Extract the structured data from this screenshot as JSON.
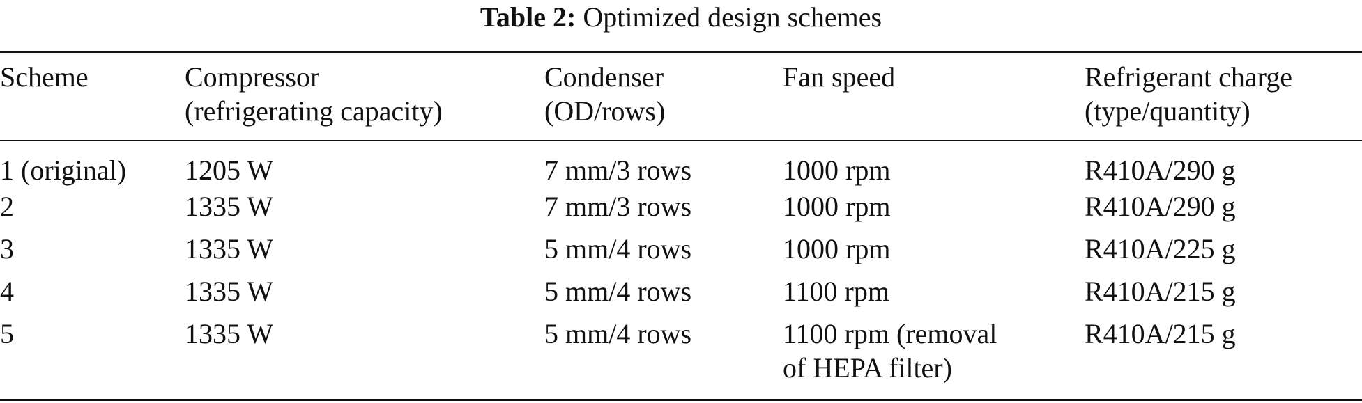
{
  "caption": {
    "label": "Table 2:",
    "text": "Optimized design schemes"
  },
  "table": {
    "headers": [
      {
        "line1": "Scheme",
        "line2": ""
      },
      {
        "line1": "Compressor",
        "line2": "(refrigerating capacity)"
      },
      {
        "line1": "Condenser",
        "line2": "(OD/rows)"
      },
      {
        "line1": "Fan speed",
        "line2": ""
      },
      {
        "line1": "Refrigerant charge",
        "line2": "(type/quantity)"
      }
    ],
    "rows": [
      {
        "scheme": "1 (original)",
        "compressor": "1205 W",
        "condenser": "7 mm/3 rows",
        "fan_speed": "1000 rpm",
        "fan_speed_2": "",
        "refrigerant": "R410A/290 g"
      },
      {
        "scheme": "2",
        "compressor": "1335 W",
        "condenser": "7 mm/3 rows",
        "fan_speed": "1000 rpm",
        "fan_speed_2": "",
        "refrigerant": "R410A/290 g"
      },
      {
        "scheme": "3",
        "compressor": "1335 W",
        "condenser": "5 mm/4 rows",
        "fan_speed": "1000 rpm",
        "fan_speed_2": "",
        "refrigerant": "R410A/225 g"
      },
      {
        "scheme": "4",
        "compressor": "1335 W",
        "condenser": "5 mm/4 rows",
        "fan_speed": "1100 rpm",
        "fan_speed_2": "",
        "refrigerant": "R410A/215 g"
      },
      {
        "scheme": "5",
        "compressor": "1335 W",
        "condenser": "5 mm/4 rows",
        "fan_speed": "1100 rpm (removal",
        "fan_speed_2": "of HEPA filter)",
        "refrigerant": "R410A/215 g"
      }
    ]
  }
}
